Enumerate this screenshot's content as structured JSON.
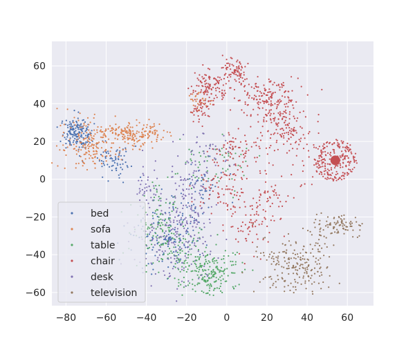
{
  "chart_data": {
    "type": "scatter",
    "title": "",
    "xlabel": "",
    "ylabel": "",
    "xlim": [
      -87,
      73
    ],
    "ylim": [
      -67,
      73
    ],
    "xticks": [
      -80,
      -60,
      -40,
      -20,
      0,
      20,
      40,
      60
    ],
    "yticks": [
      -60,
      -40,
      -20,
      0,
      20,
      40,
      60
    ],
    "xtick_labels": [
      "−80",
      "−60",
      "−40",
      "−20",
      "0",
      "20",
      "40",
      "60"
    ],
    "ytick_labels": [
      "−60",
      "−40",
      "−20",
      "0",
      "20",
      "40",
      "60"
    ],
    "grid": true,
    "legend": {
      "position": "lower-left"
    },
    "series": [
      {
        "name": "bed",
        "color": "#4c72b0",
        "clusters": [
          {
            "x": -75,
            "y": 24,
            "sx": 3.5,
            "sy": 4,
            "n": 160
          },
          {
            "x": -55,
            "y": 10,
            "sx": 5,
            "sy": 4,
            "n": 70
          },
          {
            "x": -30,
            "y": -30,
            "sx": 8,
            "sy": 9,
            "n": 130
          },
          {
            "x": -12,
            "y": -8,
            "sx": 5,
            "sy": 8,
            "n": 50
          }
        ]
      },
      {
        "name": "sofa",
        "color": "#dd8452",
        "clusters": [
          {
            "x": -68,
            "y": 18,
            "sx": 7,
            "sy": 6,
            "n": 170
          },
          {
            "x": -48,
            "y": 24,
            "sx": 8,
            "sy": 4,
            "n": 150
          },
          {
            "x": -36,
            "y": 26,
            "sx": 3,
            "sy": 2,
            "n": 30
          },
          {
            "x": -14,
            "y": 42,
            "sx": 3,
            "sy": 3,
            "n": 30
          }
        ]
      },
      {
        "name": "table",
        "color": "#55a868",
        "clusters": [
          {
            "x": -8,
            "y": -50,
            "sx": 7,
            "sy": 6,
            "n": 190
          },
          {
            "x": -35,
            "y": -25,
            "sx": 5,
            "sy": 9,
            "n": 110
          },
          {
            "x": -20,
            "y": -40,
            "sx": 6,
            "sy": 8,
            "n": 80
          },
          {
            "x": -8,
            "y": 10,
            "sx": 9,
            "sy": 8,
            "n": 60
          }
        ]
      },
      {
        "name": "chair",
        "color": "#c44e52",
        "clusters": [
          {
            "x": -8,
            "y": 50,
            "sx": 5,
            "sy": 4,
            "n": 110
          },
          {
            "x": 4,
            "y": 58,
            "sx": 3,
            "sy": 4,
            "n": 70
          },
          {
            "x": -13,
            "y": 38,
            "sx": 3,
            "sy": 4,
            "n": 50
          },
          {
            "x": 20,
            "y": 44,
            "sx": 8,
            "sy": 5,
            "n": 150
          },
          {
            "x": 26,
            "y": 30,
            "sx": 5,
            "sy": 8,
            "n": 120
          },
          {
            "x": 5,
            "y": 15,
            "sx": 8,
            "sy": 6,
            "n": 80
          },
          {
            "x": 0,
            "y": -5,
            "sx": 8,
            "sy": 6,
            "n": 70
          },
          {
            "x": 20,
            "y": -10,
            "sx": 4,
            "sy": 6,
            "n": 50
          },
          {
            "x": 10,
            "y": -25,
            "sx": 6,
            "sy": 8,
            "n": 60
          },
          {
            "x": 38,
            "y": 15,
            "sx": 5,
            "sy": 12,
            "n": 50
          }
        ],
        "radial": {
          "x": 54,
          "y": 10,
          "r": 11,
          "n": 220
        }
      },
      {
        "name": "desk",
        "color": "#8172b3",
        "clusters": [
          {
            "x": -25,
            "y": -30,
            "sx": 10,
            "sy": 12,
            "n": 190
          },
          {
            "x": -18,
            "y": -5,
            "sx": 6,
            "sy": 8,
            "n": 70
          },
          {
            "x": -40,
            "y": -5,
            "sx": 3,
            "sy": 6,
            "n": 40
          },
          {
            "x": -10,
            "y": 15,
            "sx": 7,
            "sy": 5,
            "n": 40
          }
        ]
      },
      {
        "name": "television",
        "color": "#937860",
        "clusters": [
          {
            "x": 35,
            "y": -45,
            "sx": 9,
            "sy": 8,
            "n": 210
          },
          {
            "x": 56,
            "y": -25,
            "sx": 6,
            "sy": 3,
            "n": 90
          }
        ]
      }
    ]
  }
}
